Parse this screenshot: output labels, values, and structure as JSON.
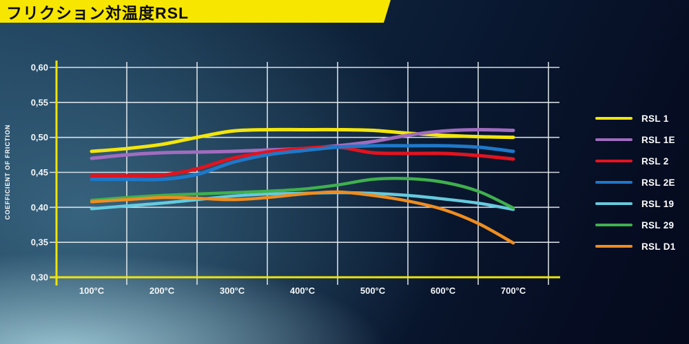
{
  "title": {
    "text": "フリクション対温度RSL"
  },
  "chart_data": {
    "type": "line",
    "title": "フリクション対温度RSL",
    "xlabel": "",
    "ylabel": "COEFFICIENT OF FRICTION",
    "ylim": [
      0.3,
      0.6
    ],
    "grid": true,
    "legend_position": "right",
    "y_ticks": [
      {
        "label": "0,60",
        "value": 0.6
      },
      {
        "label": "0,55",
        "value": 0.55
      },
      {
        "label": "0,50",
        "value": 0.5
      },
      {
        "label": "0,45",
        "value": 0.45
      },
      {
        "label": "0,40",
        "value": 0.4
      },
      {
        "label": "0,35",
        "value": 0.35
      },
      {
        "label": "0,30",
        "value": 0.3
      }
    ],
    "x_ticks": [
      {
        "label": "100°C",
        "value": 100
      },
      {
        "label": "200°C",
        "value": 200
      },
      {
        "label": "300°C",
        "value": 300
      },
      {
        "label": "400°C",
        "value": 400
      },
      {
        "label": "500°C",
        "value": 500
      },
      {
        "label": "600°C",
        "value": 600
      },
      {
        "label": "700°C",
        "value": 700
      }
    ],
    "series": [
      {
        "name": "RSL 1",
        "color": "#f2e50c",
        "width": 5,
        "points": [
          [
            100,
            0.48
          ],
          [
            150,
            0.484
          ],
          [
            200,
            0.49
          ],
          [
            250,
            0.5
          ],
          [
            300,
            0.509
          ],
          [
            350,
            0.511
          ],
          [
            400,
            0.511
          ],
          [
            450,
            0.511
          ],
          [
            500,
            0.51
          ],
          [
            550,
            0.506
          ],
          [
            600,
            0.503
          ],
          [
            650,
            0.501
          ],
          [
            700,
            0.5
          ]
        ]
      },
      {
        "name": "RSL 1E",
        "color": "#a06cbe",
        "width": 5,
        "points": [
          [
            100,
            0.47
          ],
          [
            150,
            0.475
          ],
          [
            200,
            0.478
          ],
          [
            250,
            0.479
          ],
          [
            300,
            0.48
          ],
          [
            350,
            0.482
          ],
          [
            400,
            0.484
          ],
          [
            450,
            0.488
          ],
          [
            500,
            0.494
          ],
          [
            550,
            0.503
          ],
          [
            600,
            0.509
          ],
          [
            650,
            0.511
          ],
          [
            700,
            0.51
          ]
        ]
      },
      {
        "name": "RSL 2",
        "color": "#e2131f",
        "width": 5,
        "points": [
          [
            100,
            0.445
          ],
          [
            150,
            0.445
          ],
          [
            200,
            0.446
          ],
          [
            250,
            0.455
          ],
          [
            300,
            0.47
          ],
          [
            350,
            0.479
          ],
          [
            400,
            0.484
          ],
          [
            450,
            0.486
          ],
          [
            500,
            0.478
          ],
          [
            550,
            0.477
          ],
          [
            600,
            0.477
          ],
          [
            650,
            0.474
          ],
          [
            700,
            0.469
          ]
        ]
      },
      {
        "name": "RSL 2E",
        "color": "#1e78c8",
        "width": 5,
        "points": [
          [
            100,
            0.44
          ],
          [
            150,
            0.44
          ],
          [
            200,
            0.44
          ],
          [
            250,
            0.447
          ],
          [
            300,
            0.464
          ],
          [
            350,
            0.475
          ],
          [
            400,
            0.481
          ],
          [
            450,
            0.486
          ],
          [
            500,
            0.488
          ],
          [
            550,
            0.488
          ],
          [
            600,
            0.488
          ],
          [
            650,
            0.486
          ],
          [
            700,
            0.48
          ]
        ]
      },
      {
        "name": "RSL 19",
        "color": "#66cade",
        "width": 4.5,
        "points": [
          [
            100,
            0.398
          ],
          [
            150,
            0.402
          ],
          [
            200,
            0.406
          ],
          [
            250,
            0.411
          ],
          [
            300,
            0.416
          ],
          [
            350,
            0.419
          ],
          [
            400,
            0.42
          ],
          [
            450,
            0.421
          ],
          [
            500,
            0.42
          ],
          [
            550,
            0.417
          ],
          [
            600,
            0.412
          ],
          [
            650,
            0.406
          ],
          [
            700,
            0.397
          ]
        ]
      },
      {
        "name": "RSL 29",
        "color": "#3fb04e",
        "width": 4.5,
        "points": [
          [
            100,
            0.41
          ],
          [
            150,
            0.414
          ],
          [
            200,
            0.417
          ],
          [
            250,
            0.419
          ],
          [
            300,
            0.421
          ],
          [
            350,
            0.423
          ],
          [
            400,
            0.426
          ],
          [
            450,
            0.432
          ],
          [
            500,
            0.44
          ],
          [
            550,
            0.441
          ],
          [
            600,
            0.436
          ],
          [
            650,
            0.423
          ],
          [
            700,
            0.399
          ]
        ]
      },
      {
        "name": "RSL D1",
        "color": "#ef8d1f",
        "width": 4.5,
        "points": [
          [
            100,
            0.408
          ],
          [
            150,
            0.411
          ],
          [
            200,
            0.414
          ],
          [
            250,
            0.413
          ],
          [
            300,
            0.411
          ],
          [
            350,
            0.414
          ],
          [
            400,
            0.419
          ],
          [
            450,
            0.422
          ],
          [
            500,
            0.417
          ],
          [
            550,
            0.409
          ],
          [
            600,
            0.397
          ],
          [
            650,
            0.377
          ],
          [
            700,
            0.349
          ]
        ]
      }
    ],
    "colors": {
      "axis": "#efe40a",
      "grid": "#e8eef2",
      "tick_text": "#f4f7f9"
    }
  }
}
